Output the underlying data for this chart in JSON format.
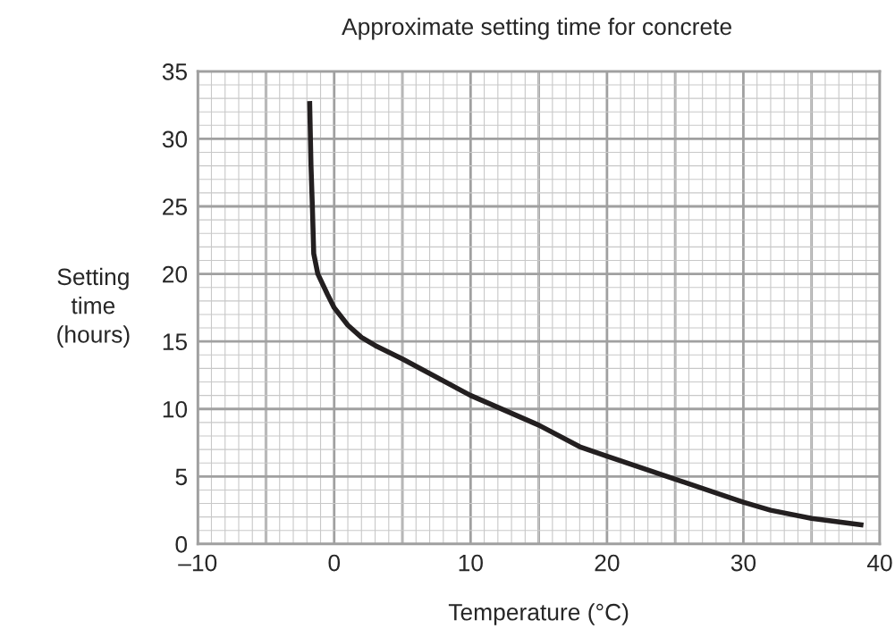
{
  "chart_data": {
    "type": "line",
    "title": "Approximate setting time for concrete",
    "xlabel": "Temperature (°C)",
    "ylabel": "Setting\ntime\n(hours)",
    "x": [
      -1.8,
      -1.7,
      -1.6,
      -1.5,
      -1.2,
      -0.5,
      0,
      1,
      2,
      3,
      5,
      10,
      15,
      18,
      20,
      25,
      30,
      32,
      35,
      38.8
    ],
    "series": [
      {
        "color": "#231f20",
        "values": [
          32.8,
          28,
          25,
          21.5,
          20,
          18.5,
          17.5,
          16.2,
          15.3,
          14.7,
          13.7,
          11,
          8.8,
          7.2,
          6.5,
          4.8,
          3.1,
          2.5,
          1.9,
          1.4
        ]
      }
    ],
    "xlim": [
      -10,
      40
    ],
    "xticks": [
      {
        "value": -10,
        "label": "–10"
      },
      0,
      10,
      20,
      30,
      40
    ],
    "ylim": [
      0,
      35
    ],
    "yticks": [
      0,
      5,
      10,
      15,
      20,
      25,
      30,
      35
    ],
    "grid": true,
    "marker": "none",
    "line_style": "solid"
  }
}
